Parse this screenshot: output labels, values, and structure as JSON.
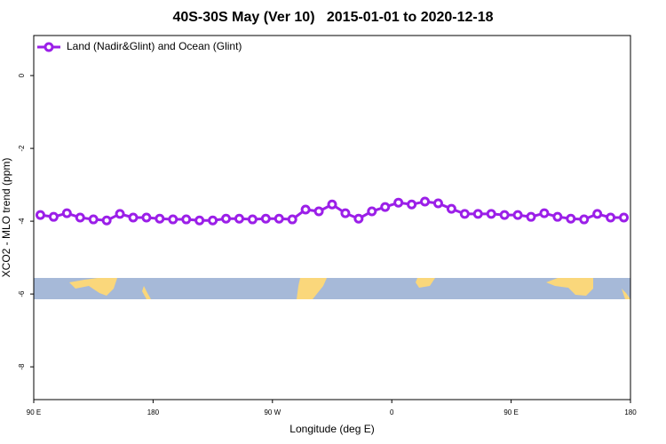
{
  "chart_data": {
    "type": "line",
    "title": "40S-30S May (Ver 10)   2015-01-01 to 2020-12-18",
    "x_label": "Longitude (deg E)",
    "y_label": "XCO2 - MLO trend (ppm)",
    "x": [
      95,
      105,
      115,
      125,
      135,
      145,
      155,
      165,
      175,
      185,
      195,
      205,
      215,
      225,
      235,
      245,
      255,
      265,
      275,
      285,
      295,
      305,
      315,
      325,
      335,
      345,
      355,
      365,
      375,
      385,
      395,
      405,
      415,
      425,
      435,
      445,
      455,
      465,
      475,
      485,
      495,
      505,
      515,
      525,
      535
    ],
    "series": [
      {
        "name": "Land (Nadir&Glint) and Ocean (Glint)",
        "color": "#9b1fe8",
        "values": [
          -3.83,
          -3.88,
          -3.78,
          -3.9,
          -3.95,
          -3.98,
          -3.8,
          -3.9,
          -3.9,
          -3.93,
          -3.95,
          -3.95,
          -3.98,
          -3.98,
          -3.93,
          -3.93,
          -3.95,
          -3.93,
          -3.93,
          -3.95,
          -3.68,
          -3.73,
          -3.54,
          -3.78,
          -3.93,
          -3.73,
          -3.61,
          -3.49,
          -3.54,
          -3.46,
          -3.51,
          -3.66,
          -3.8,
          -3.8,
          -3.8,
          -3.83,
          -3.83,
          -3.88,
          -3.78,
          -3.88,
          -3.93,
          -3.95,
          -3.8,
          -3.9,
          -3.9
        ]
      }
    ],
    "xlim": [
      90,
      540
    ],
    "xticks": [
      {
        "value": 90,
        "label": "90 E"
      },
      180,
      {
        "value": 270,
        "label": "90 W"
      },
      {
        "value": 360,
        "label": "0"
      },
      {
        "value": 450,
        "label": "90 E"
      },
      {
        "value": 540,
        "label": "180"
      }
    ],
    "ylim": [
      -8.9,
      1.1
    ],
    "yticks": [
      0,
      -2,
      -4,
      -6,
      -8
    ],
    "legend": "top-left"
  }
}
